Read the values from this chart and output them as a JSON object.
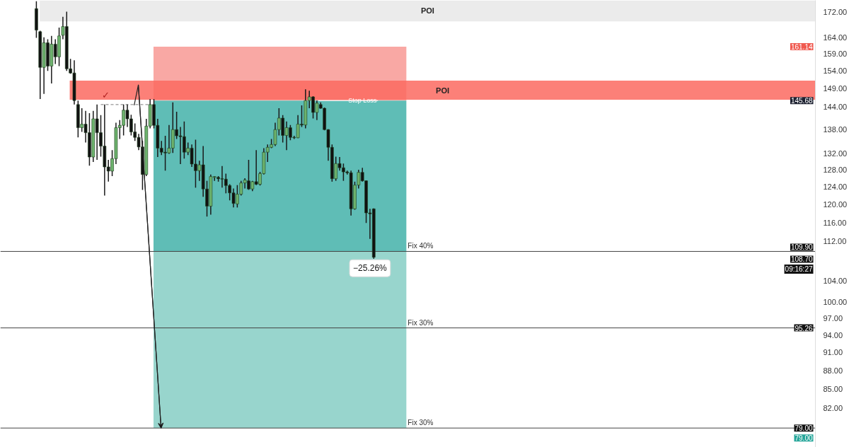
{
  "chart_data": {
    "type": "candlestick",
    "categories": [
      null,
      null,
      null,
      null,
      null,
      null,
      null,
      null,
      null,
      null,
      null,
      null,
      null,
      null,
      null,
      null,
      null,
      null,
      null,
      null,
      null,
      null,
      null,
      null,
      null,
      null,
      null,
      null,
      null,
      null,
      null,
      null,
      null,
      null,
      null,
      null,
      null,
      null,
      null,
      null,
      null,
      null,
      null,
      null,
      null,
      null,
      null,
      null,
      null,
      null,
      null,
      null,
      null,
      null,
      null,
      null,
      null,
      null,
      null,
      null,
      null,
      null,
      null,
      null,
      null,
      null,
      null,
      null,
      null,
      null,
      null,
      null,
      null,
      null,
      null,
      null,
      null,
      null,
      null,
      null,
      null,
      null,
      null,
      null,
      null,
      null,
      null,
      null,
      null,
      null,
      null,
      null,
      null,
      null,
      null,
      null,
      null,
      null,
      null,
      null,
      null,
      null,
      null,
      null,
      null,
      null,
      null,
      null,
      null,
      null,
      null,
      null,
      null,
      null,
      null,
      null,
      null,
      null,
      null,
      null,
      null,
      null,
      null,
      null,
      null,
      null,
      null,
      null,
      null,
      null,
      null,
      null,
      null,
      null,
      null,
      null,
      null,
      null,
      null,
      null,
      null,
      null,
      null,
      null,
      null,
      null,
      null,
      null,
      null,
      null,
      null,
      null,
      null,
      null,
      null,
      null,
      null,
      null,
      null,
      null,
      null,
      null,
      null,
      null,
      null,
      null,
      null,
      null,
      null,
      null,
      null,
      null,
      null,
      null,
      null,
      null,
      null,
      null,
      null,
      null,
      null,
      null,
      null,
      null,
      null,
      null,
      null,
      null,
      null,
      null,
      null,
      null,
      null,
      null,
      null,
      null,
      null,
      null,
      null,
      null,
      null,
      null,
      null,
      null,
      null,
      null,
      null,
      null,
      null,
      null,
      null,
      null,
      null,
      null,
      null
    ],
    "ohlc": [
      null,
      null,
      null,
      null,
      null,
      null,
      null,
      null,
      null,
      [
        173.0,
        175.4,
        163.8,
        166.2
      ],
      [
        165.7,
        166.0,
        146.1,
        155.0
      ],
      [
        155.0,
        164.0,
        147.5,
        162.3
      ],
      [
        162.3,
        163.4,
        154.0,
        155.4
      ],
      [
        155.4,
        164.4,
        150.4,
        161.9
      ],
      [
        161.9,
        163.4,
        156.0,
        158.1
      ],
      [
        158.1,
        167.0,
        155.4,
        164.4
      ],
      [
        164.6,
        170.4,
        163.4,
        167.3
      ],
      [
        167.3,
        172.0,
        154.0,
        154.6
      ],
      [
        154.6,
        157.5,
        153.2,
        153.4
      ],
      [
        153.4,
        157.1,
        144.6,
        145.7
      ],
      [
        144.6,
        145.7,
        136.0,
        138.5
      ],
      [
        138.5,
        143.6,
        137.4,
        139.4
      ],
      [
        139.4,
        142.9,
        134.7,
        137.2
      ],
      [
        137.2,
        142.3,
        129.0,
        131.1
      ],
      [
        131.1,
        142.9,
        129.9,
        140.8
      ],
      [
        140.8,
        144.6,
        130.4,
        137.2
      ],
      [
        137.2,
        141.8,
        131.2,
        133.8
      ],
      [
        133.8,
        144.6,
        122.0,
        128.7
      ],
      [
        128.7,
        130.4,
        125.2,
        127.7
      ],
      [
        127.7,
        132.8,
        126.5,
        130.7
      ],
      [
        130.7,
        139.8,
        129.4,
        138.5
      ],
      [
        138.5,
        140.5,
        135.6,
        139.1
      ],
      [
        139.1,
        144.6,
        136.5,
        143.1
      ],
      [
        143.1,
        144.6,
        138.7,
        140.8
      ],
      [
        140.8,
        141.9,
        136.5,
        137.4
      ],
      [
        137.4,
        139.6,
        135.1,
        136.0
      ],
      [
        136.0,
        136.9,
        132.8,
        133.6
      ],
      [
        133.6,
        135.1,
        123.3,
        126.9
      ],
      [
        126.9,
        140.8,
        126.5,
        138.9
      ],
      [
        138.9,
        146.1,
        138.3,
        144.6
      ],
      [
        144.6,
        146.1,
        138.3,
        139.1
      ],
      [
        139.1,
        140.8,
        131.1,
        133.3
      ],
      [
        133.3,
        135.1,
        131.6,
        132.3
      ],
      [
        132.3,
        136.4,
        127.8,
        132.1
      ],
      [
        132.1,
        139.2,
        131.9,
        133.3
      ],
      [
        133.3,
        145.2,
        132.1,
        138.0
      ],
      [
        138.0,
        142.7,
        135.6,
        136.4
      ],
      [
        136.4,
        138.7,
        129.4,
        136.2
      ],
      [
        136.2,
        140.1,
        130.7,
        132.3
      ],
      [
        132.3,
        134.7,
        131.6,
        133.3
      ],
      [
        133.3,
        134.2,
        128.7,
        129.4
      ],
      [
        129.4,
        135.4,
        123.8,
        127.8
      ],
      [
        127.8,
        130.2,
        125.4,
        129.2
      ],
      [
        129.2,
        133.8,
        121.7,
        123.5
      ],
      [
        123.5,
        125.4,
        117.3,
        119.6
      ],
      [
        119.6,
        126.9,
        117.7,
        126.4
      ],
      [
        126.2,
        126.5,
        125.4,
        126.4
      ],
      [
        126.2,
        126.5,
        125.2,
        125.9
      ],
      [
        125.9,
        128.9,
        123.8,
        125.8
      ],
      [
        125.8,
        127.1,
        122.5,
        124.3
      ],
      [
        124.3,
        124.6,
        120.9,
        122.6
      ],
      [
        122.6,
        123.6,
        119.3,
        120.2
      ],
      [
        120.1,
        124.4,
        119.3,
        122.3
      ],
      [
        122.3,
        125.4,
        122.0,
        124.9
      ],
      [
        124.9,
        126.0,
        123.6,
        125.6
      ],
      [
        125.4,
        130.4,
        123.3,
        123.5
      ],
      [
        123.5,
        125.4,
        123.0,
        125.2
      ],
      [
        125.2,
        132.8,
        124.4,
        124.6
      ],
      [
        124.6,
        127.5,
        124.3,
        127.1
      ],
      [
        127.1,
        133.3,
        126.9,
        132.3
      ],
      [
        132.3,
        134.2,
        129.9,
        133.5
      ],
      [
        133.5,
        135.6,
        133.3,
        134.2
      ],
      [
        134.2,
        139.8,
        133.8,
        138.0
      ],
      [
        138.0,
        143.6,
        136.5,
        141.0
      ],
      [
        141.0,
        141.8,
        134.7,
        136.5
      ],
      [
        136.5,
        140.1,
        132.8,
        138.5
      ],
      [
        138.5,
        139.2,
        135.3,
        136.0
      ],
      [
        136.0,
        136.4,
        135.6,
        135.9
      ],
      [
        135.9,
        141.8,
        135.8,
        139.4
      ],
      [
        139.4,
        144.4,
        138.7,
        139.2
      ],
      [
        139.2,
        148.8,
        138.3,
        145.7
      ],
      [
        145.7,
        148.4,
        143.6,
        146.7
      ],
      [
        146.7,
        146.9,
        140.9,
        142.5
      ],
      [
        142.5,
        145.7,
        140.5,
        145.0
      ],
      [
        144.6,
        145.2,
        143.5,
        143.6
      ],
      [
        143.6,
        143.8,
        137.8,
        138.0
      ],
      [
        138.0,
        138.1,
        130.2,
        133.5
      ],
      [
        133.5,
        134.2,
        125.2,
        125.9
      ],
      [
        125.9,
        131.2,
        125.4,
        129.5
      ],
      [
        129.5,
        131.1,
        127.8,
        128.5
      ],
      [
        128.5,
        129.5,
        125.4,
        127.5
      ],
      [
        127.5,
        127.8,
        126.9,
        127.3
      ],
      [
        127.3,
        127.8,
        117.5,
        119.0
      ],
      [
        119.0,
        125.2,
        118.8,
        124.4
      ],
      [
        124.4,
        128.0,
        123.6,
        127.4
      ],
      [
        127.4,
        128.5,
        125.2,
        125.4
      ],
      [
        125.4,
        125.5,
        115.9,
        118.1
      ],
      [
        118.1,
        119.0,
        112.5,
        117.9
      ],
      [
        119.0,
        119.1,
        108.4,
        108.7
      ],
      null,
      null,
      null,
      null,
      null,
      null,
      null,
      null,
      null,
      null,
      null,
      null,
      null,
      null,
      null,
      null,
      null,
      null,
      null,
      null,
      null,
      null,
      null,
      null,
      null,
      null,
      null,
      null,
      null,
      null,
      null,
      null,
      null,
      null,
      null,
      null,
      null,
      null,
      null,
      null,
      null,
      null,
      null,
      null,
      null,
      null,
      null,
      null,
      null,
      null,
      null,
      null,
      null,
      null,
      null,
      null,
      null,
      null,
      null,
      null,
      null,
      null,
      null,
      null,
      null,
      null,
      null,
      null,
      null,
      null,
      null,
      null,
      null,
      null,
      null,
      null,
      null,
      null,
      null,
      null,
      null,
      null,
      null,
      null,
      null,
      null,
      null,
      null,
      null,
      null,
      null,
      null,
      null,
      null,
      null,
      null,
      null,
      null,
      null,
      null,
      null,
      null,
      null,
      null,
      null,
      null,
      null,
      null,
      null,
      null,
      null,
      null,
      null,
      null,
      null,
      null
    ],
    "colors": [
      null,
      null,
      null,
      null,
      null,
      null,
      null,
      null,
      null,
      "#111111",
      "#111111",
      "#6db36d",
      "#111111",
      "#6db36d",
      "#111111",
      "#6db36d",
      "#6db36d",
      "#111111",
      "#111111",
      "#111111",
      "#111111",
      "#6db36d",
      "#111111",
      "#111111",
      "#6db36d",
      "#111111",
      "#111111",
      "#111111",
      "#111111",
      "#6db36d",
      "#6db36d",
      "#6db36d",
      "#6db36d",
      "#111111",
      "#111111",
      "#111111",
      "#111111",
      "#111111",
      "#6db36d",
      "#6db36d",
      "#111111",
      "#111111",
      "#111111",
      "#111111",
      "#6db36d",
      "#6db36d",
      "#111111",
      "#111111",
      "#111111",
      "#6db36d",
      "#111111",
      "#111111",
      "#6db36d",
      "#111111",
      "#111111",
      "#6db36d",
      "#6db36d",
      "#111111",
      "#111111",
      "#111111",
      "#111111",
      "#111111",
      "#6db36d",
      "#6db36d",
      "#6db36d",
      "#111111",
      "#6db36d",
      "#111111",
      "#6db36d",
      "#6db36d",
      "#6db36d",
      "#6db36d",
      "#6db36d",
      "#6db36d",
      "#111111",
      "#6db36d",
      "#111111",
      "#111111",
      "#6db36d",
      "#111111",
      "#6db36d",
      "#6db36d",
      "#111111",
      "#6db36d",
      "#111111",
      "#111111",
      "#111111",
      "#111111",
      "#6db36d",
      "#111111",
      "#111111",
      "#111111",
      "#111111",
      "#6db36d",
      "#6db36d",
      "#111111",
      "#111111",
      "#111111",
      "#111111",
      null,
      null,
      null,
      null,
      null,
      null,
      null,
      null,
      null,
      null,
      null,
      null,
      null,
      null,
      null,
      null,
      null,
      null,
      null,
      null,
      null,
      null,
      null,
      null,
      null,
      null,
      null,
      null,
      null,
      null,
      null,
      null,
      null,
      null,
      null,
      null,
      null,
      null,
      null,
      null,
      null,
      null,
      null,
      null,
      null,
      null,
      null,
      null,
      null,
      null,
      null,
      null,
      null,
      null,
      null,
      null,
      null,
      null,
      null,
      null,
      null,
      null,
      null,
      null,
      null,
      null,
      null,
      null,
      null,
      null,
      null,
      null,
      null,
      null,
      null,
      null,
      null,
      null,
      null,
      null,
      null,
      null,
      null,
      null,
      null,
      null,
      null,
      null,
      null,
      null,
      null,
      null,
      null,
      null,
      null,
      null,
      null,
      null,
      null,
      null,
      null,
      null,
      null,
      null,
      null,
      null,
      null,
      null,
      null,
      null,
      null,
      null,
      null,
      null,
      null,
      null
    ],
    "series": [
      {
        "type": "line",
        "color": "#777777",
        "line_style": "dashed",
        "values": [
          null,
          null,
          null,
          null,
          null,
          null,
          null,
          null,
          null,
          null,
          null,
          null,
          null,
          null,
          null,
          null,
          null,
          null,
          null,
          null,
          null,
          null,
          null,
          null,
          null,
          null,
          144.6,
          144.6,
          144.6,
          144.6,
          144.6,
          144.6,
          144.6,
          144.6,
          144.6,
          144.6,
          144.6,
          144.6,
          144.6,
          144.6,
          null,
          null,
          null,
          null,
          null,
          null,
          null,
          null,
          null,
          null,
          null,
          null,
          null,
          null,
          null,
          null,
          null,
          null,
          null,
          null,
          null,
          null,
          null,
          null,
          null,
          null,
          null,
          null,
          null,
          null,
          null,
          null,
          null,
          null,
          null,
          null,
          null,
          null,
          null,
          null,
          null,
          null,
          null,
          null,
          null,
          null,
          null,
          null,
          null,
          null,
          null,
          null,
          null,
          null,
          null,
          null,
          null,
          null,
          null,
          null,
          null,
          null,
          null,
          null,
          null,
          null,
          null,
          null,
          null,
          null,
          null,
          null,
          null,
          null,
          null,
          null,
          null,
          null,
          null,
          null,
          null,
          null,
          null,
          null,
          null,
          null,
          null,
          null,
          null,
          null,
          null,
          null,
          null,
          null,
          null,
          null,
          null,
          null,
          null,
          null,
          null,
          null,
          null,
          null,
          null,
          null,
          null,
          null,
          null,
          null,
          null,
          null,
          null,
          null,
          null,
          null,
          null,
          null,
          null,
          null,
          null,
          null,
          null,
          null,
          null,
          null,
          null,
          null,
          null,
          null,
          null,
          null,
          null,
          null,
          null,
          null,
          null,
          null,
          null,
          null,
          null,
          null,
          null,
          null,
          null,
          null,
          null,
          null,
          null,
          null,
          null,
          null,
          null,
          null,
          null,
          null,
          null,
          null,
          null,
          null,
          null,
          null,
          null,
          null,
          null,
          null,
          null,
          null,
          null,
          null,
          null,
          null,
          null,
          null,
          null
        ]
      }
    ],
    "log": true,
    "ylim": [
      76.2,
      175.7
    ],
    "yticks": [
      {
        "value": 172,
        "label": "172.00"
      },
      {
        "value": 164,
        "label": "164.00"
      },
      {
        "value": 159,
        "label": "159.00"
      },
      {
        "value": 154,
        "label": "154.00"
      },
      {
        "value": 149,
        "label": "149.00"
      },
      {
        "value": 144,
        "label": "144.00"
      },
      {
        "value": 138,
        "label": "138.00"
      },
      {
        "value": 132,
        "label": "132.00"
      },
      {
        "value": 128,
        "label": "128.00"
      },
      {
        "value": 124,
        "label": "124.00"
      },
      {
        "value": 120,
        "label": "120.00"
      },
      {
        "value": 116,
        "label": "116.00"
      },
      {
        "value": 112,
        "label": "112.00"
      },
      {
        "value": 104,
        "label": "104.00"
      },
      {
        "value": 100,
        "label": "100.00"
      },
      {
        "value": 97,
        "label": "97.00"
      },
      {
        "value": 94,
        "label": "94.00"
      },
      {
        "value": 91,
        "label": "91.00"
      },
      {
        "value": 88,
        "label": "88.00"
      },
      {
        "value": 85,
        "label": "85.00"
      },
      {
        "value": 82,
        "label": "82.00"
      }
    ],
    "tick_labels": "y",
    "grid": false,
    "bands": [
      {
        "axis": "y",
        "from": 168.9,
        "to": 175.7,
        "label": "POI",
        "color": "#ebebeb"
      },
      {
        "axis": "y",
        "from": 145.68,
        "to": 161.14,
        "color": "#f9a8a4"
      },
      {
        "axis": "y",
        "from": 109.9,
        "to": 145.68,
        "color": "#5fbdb6"
      },
      {
        "axis": "y",
        "from": 79.0,
        "to": 109.9,
        "color": "#98d5cd"
      },
      {
        "axis": "y",
        "from": 145.9,
        "to": 151.2,
        "label": "POI",
        "color": "#fb6a60"
      }
    ],
    "ref_lines": [
      {
        "axis": "y",
        "value": 145.68,
        "label": "Stop Loss",
        "color": "#ffffff"
      },
      {
        "axis": "y",
        "value": 109.9,
        "label": "Fix 40%",
        "color": "#444444"
      },
      {
        "axis": "y",
        "value": 95.26,
        "label": "Fix 30%",
        "color": "#444444"
      },
      {
        "axis": "y",
        "value": 79.0,
        "label": "Fix 30%",
        "color": "#444444"
      }
    ],
    "annotations": [
      "✓",
      "−25.26%",
      {
        "text": "161.14",
        "y": 161.14
      },
      {
        "text": "145.68",
        "y": 145.68
      },
      {
        "text": "109.90",
        "y": 109.9
      },
      "108.70",
      "09:16:27",
      {
        "text": "95.26",
        "y": 95.26
      },
      {
        "text": "79.00",
        "y": 79.0
      },
      {
        "text": "79.00",
        "y": 79.0
      }
    ]
  }
}
